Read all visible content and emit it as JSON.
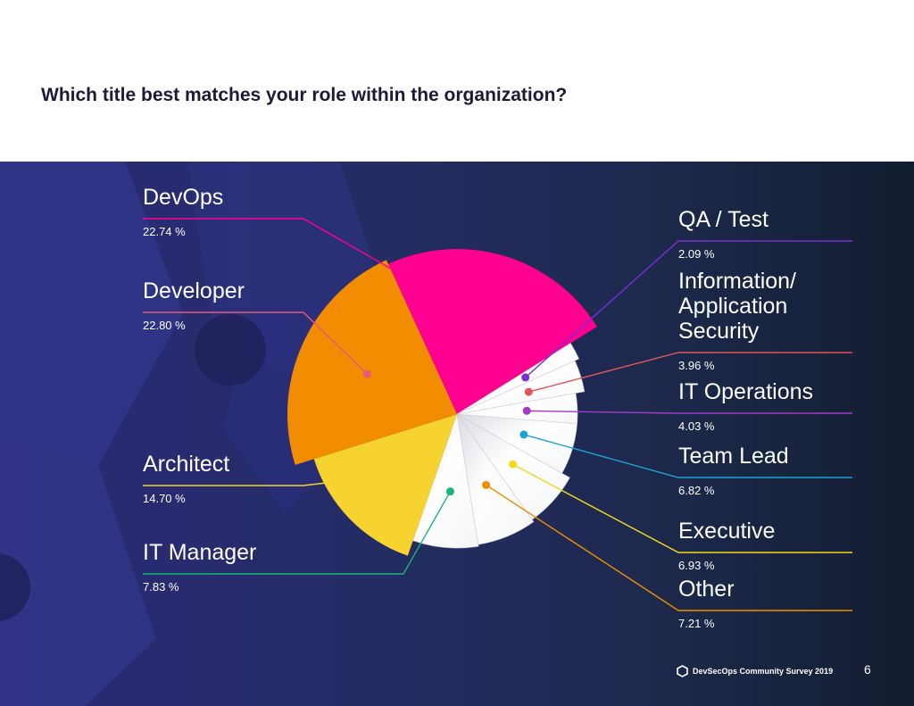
{
  "page": {
    "title": "Which title best matches your role within the organization?",
    "footer_text": "DevSecOps Community Survey 2019",
    "page_number": "6"
  },
  "colors": {
    "DevOps": "#ff0090",
    "Developer": "#f28c00",
    "Architect": "#f7d330",
    "Others": "#ffffff",
    "panel": "#242c65"
  },
  "chart_data": {
    "type": "pie",
    "title": "Which title best matches your role within the organization?",
    "unit": "%",
    "slices": [
      {
        "label": "DevOps",
        "value": 22.74,
        "display": "22.74 %",
        "color": "#ff0090"
      },
      {
        "label": "QA / Test",
        "value": 2.09,
        "display": "2.09 %",
        "color": "#7a2dd6"
      },
      {
        "label": "Information/ Application Security",
        "label_lines": [
          "Information/",
          "Application",
          "Security"
        ],
        "value": 3.96,
        "display": "3.96 %",
        "color": "#e0565c"
      },
      {
        "label": "IT Operations",
        "value": 4.03,
        "display": "4.03 %",
        "color": "#a13bc8"
      },
      {
        "label": "Team Lead",
        "value": 6.82,
        "display": "6.82 %",
        "color": "#1aa3d6"
      },
      {
        "label": "Executive",
        "value": 6.93,
        "display": "6.93 %",
        "color": "#f2d91a"
      },
      {
        "label": "Other",
        "value": 7.21,
        "display": "7.21 %",
        "color": "#f28c00"
      },
      {
        "label": "IT Manager",
        "value": 7.83,
        "display": "7.83 %",
        "color": "#1bb57a"
      },
      {
        "label": "Architect",
        "value": 14.7,
        "display": "14.70 %",
        "color": "#f7d330"
      },
      {
        "label": "Developer",
        "value": 22.8,
        "display": "22.80 %",
        "color": "#e8597a"
      }
    ]
  }
}
